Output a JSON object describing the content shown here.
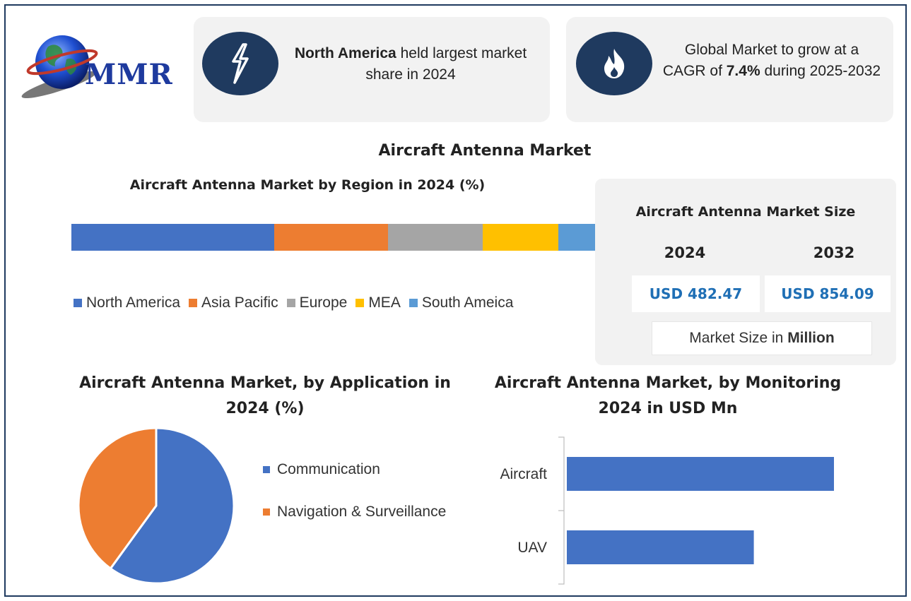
{
  "logo": {
    "text": "MMR"
  },
  "cards": [
    {
      "icon": "lightning-icon",
      "bold": "North America",
      "text": " held largest market share in 2024"
    },
    {
      "icon": "flame-icon",
      "text_before": "Global Market to grow at a CAGR of ",
      "bold": "7.4%",
      "text_after": " during 2025-2032"
    }
  ],
  "main_title": "Aircraft Antenna Market",
  "market_size": {
    "title": "Aircraft Antenna Market Size",
    "years": [
      "2024",
      "2032"
    ],
    "values": [
      "USD 482.47",
      "USD 854.09"
    ],
    "unit_prefix": "Market Size in ",
    "unit_bold": "Million"
  },
  "colors": {
    "navy": "#1f3a5f",
    "blue": "#4472c4",
    "orange": "#ed7d31",
    "gray": "#a5a5a5",
    "yellow": "#ffc000",
    "lightblue": "#5b9bd5"
  },
  "chart_data": [
    {
      "type": "bar",
      "stacked": true,
      "orientation": "horizontal",
      "title": "Aircraft Antenna Market by Region in 2024 (%)",
      "series": [
        {
          "name": "North America",
          "value": 38,
          "color": "#4472c4"
        },
        {
          "name": "Asia Pacific",
          "value": 21.3,
          "color": "#ed7d31"
        },
        {
          "name": "Europe",
          "value": 17.7,
          "color": "#a5a5a5"
        },
        {
          "name": "MEA",
          "value": 14.2,
          "color": "#ffc000"
        },
        {
          "name": "South Ameica",
          "value": 8.8,
          "color": "#5b9bd5"
        }
      ],
      "legend": "bottom"
    },
    {
      "type": "pie",
      "title": "Aircraft Antenna Market, by Application in 2024 (%)",
      "labels": [
        "Communication",
        "Navigation & Surveillance"
      ],
      "values": [
        60,
        40
      ],
      "colors": [
        "#4472c4",
        "#ed7d31"
      ],
      "legend": "right"
    },
    {
      "type": "bar",
      "orientation": "horizontal",
      "title": "Aircraft Antenna Market, by Monitoring 2024 in USD Mn",
      "categories": [
        "Aircraft",
        "UAV"
      ],
      "values": [
        100,
        70
      ],
      "color": "#4472c4",
      "xlim": [
        0,
        100
      ]
    }
  ]
}
